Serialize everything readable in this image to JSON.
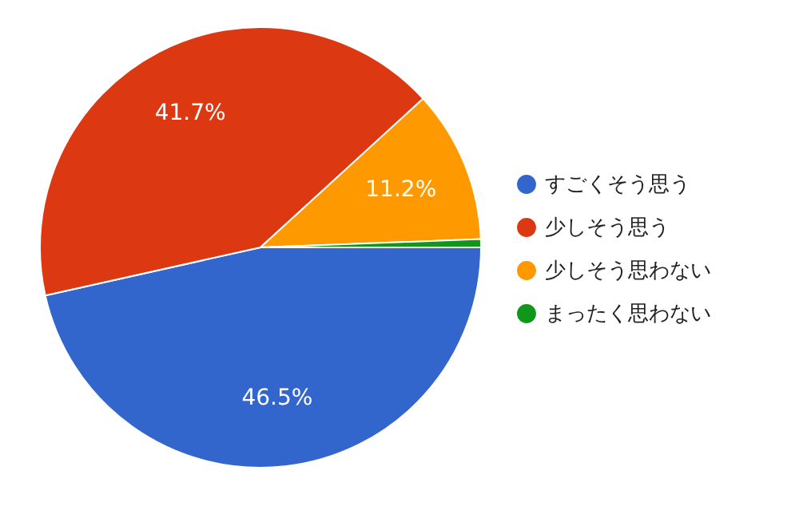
{
  "chart_data": {
    "type": "pie",
    "categories": [
      "すごくそう思う",
      "少しそう思う",
      "少しそう思わない",
      "まったく思わない"
    ],
    "values": [
      46.5,
      41.7,
      11.2,
      0.6
    ],
    "colors": [
      "#3366cc",
      "#dc3912",
      "#ff9900",
      "#109618"
    ],
    "value_labels": [
      "46.5%",
      "41.7%",
      "11.2%",
      null
    ],
    "legend": "right"
  }
}
